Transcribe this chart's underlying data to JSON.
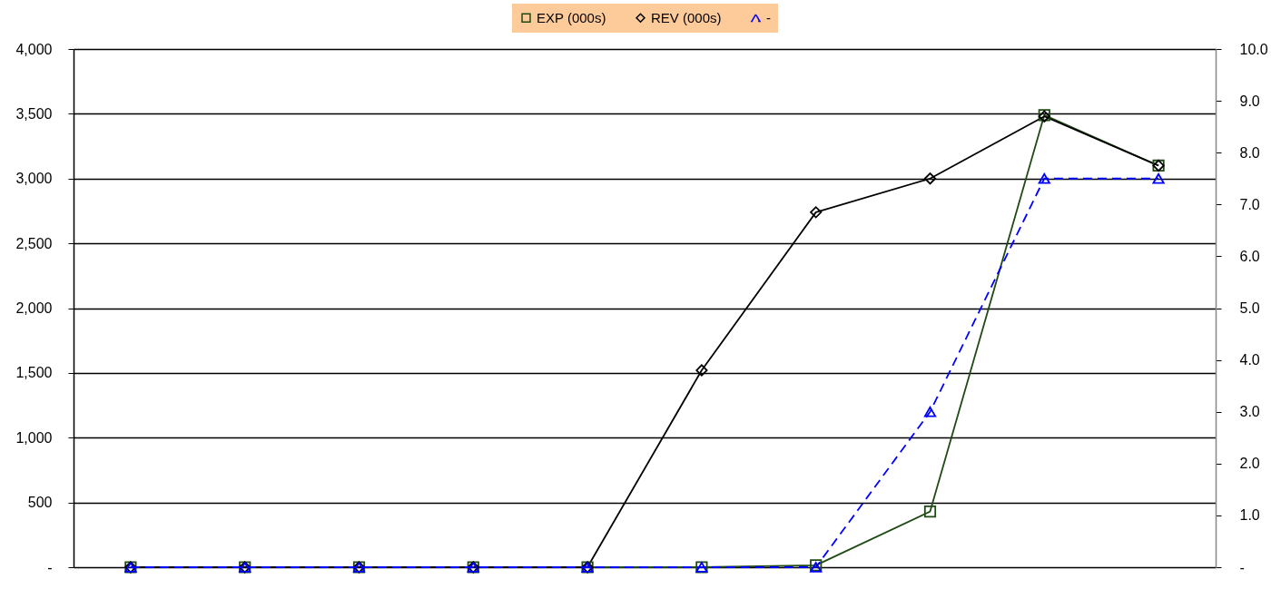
{
  "chart_data": {
    "type": "line",
    "categories": [
      null,
      null,
      null,
      null,
      null,
      null,
      null,
      null,
      null,
      null
    ],
    "series": [
      {
        "name": "EXP (000s)",
        "color": "#1f4a14",
        "marker": "square",
        "line_style": "solid",
        "values": [
          0,
          0,
          0,
          0,
          0,
          0,
          15,
          430,
          3490,
          3100
        ]
      },
      {
        "name": "REV (000s)",
        "color": "#000000",
        "marker": "diamond",
        "line_style": "solid",
        "values": [
          0,
          0,
          0,
          0,
          0,
          1520,
          2740,
          3000,
          3480,
          3100
        ]
      },
      {
        "name": "-",
        "color": "#0000ff",
        "marker": "triangle",
        "line_style": "dashed",
        "axis": "y2",
        "values": [
          0,
          0,
          0,
          0,
          0,
          0,
          0,
          3.0,
          7.5,
          7.5
        ]
      }
    ],
    "ylim": [
      0,
      4000
    ],
    "yticks": [
      {
        "value": 0,
        "label": "-"
      },
      500,
      {
        "value": 1000,
        "label": "1,000"
      },
      {
        "value": 1500,
        "label": "1,500"
      },
      {
        "value": 2000,
        "label": "2,000"
      },
      {
        "value": 2500,
        "label": "2,500"
      },
      {
        "value": 3000,
        "label": "3,000"
      },
      {
        "value": 3500,
        "label": "3,500"
      },
      {
        "value": 4000,
        "label": "4,000"
      }
    ],
    "y2lim": [
      0,
      10
    ],
    "y2ticks": [
      {
        "value": 0,
        "label": "-"
      },
      {
        "value": 1,
        "label": "1.0"
      },
      {
        "value": 2,
        "label": "2.0"
      },
      {
        "value": 3,
        "label": "3.0"
      },
      {
        "value": 4,
        "label": "4.0"
      },
      {
        "value": 5,
        "label": "5.0"
      },
      {
        "value": 6,
        "label": "6.0"
      },
      {
        "value": 7,
        "label": "7.0"
      },
      {
        "value": 8,
        "label": "8.0"
      },
      {
        "value": 9,
        "label": "9.0"
      },
      {
        "value": 10,
        "label": "10.0"
      }
    ],
    "grid": "y",
    "legend": "top"
  }
}
